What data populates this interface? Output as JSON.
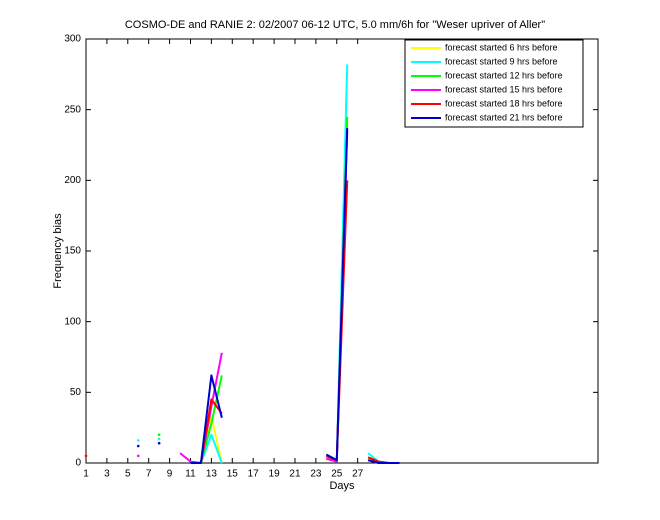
{
  "chart_data": {
    "type": "line",
    "title": "COSMO-DE and RANIE 2: 02/2007 06-12 UTC, 5.0 mm/6h for \"Weser upriver of Aller\"",
    "x_label": "Days",
    "y_label": "Frequency bias",
    "x": [
      1,
      2,
      3,
      4,
      5,
      6,
      7,
      8,
      9,
      10,
      11,
      12,
      13,
      14,
      15,
      16,
      17,
      18,
      19,
      20,
      21,
      22,
      23,
      24,
      25,
      26,
      27,
      28,
      29,
      30,
      31
    ],
    "series": [
      {
        "name": "forecast started 6 hrs before",
        "color": "#ffff00",
        "values": [
          null,
          null,
          null,
          null,
          null,
          null,
          null,
          null,
          null,
          null,
          0,
          0,
          33,
          0,
          null,
          null,
          null,
          null,
          null,
          null,
          null,
          null,
          null,
          4,
          1,
          240,
          null,
          3,
          0,
          0,
          0
        ]
      },
      {
        "name": "forecast started 9 hrs before",
        "color": "#00ffff",
        "values": [
          null,
          null,
          null,
          null,
          null,
          16,
          null,
          17,
          null,
          null,
          1,
          0,
          20,
          0,
          null,
          null,
          null,
          null,
          null,
          null,
          null,
          null,
          null,
          3,
          1,
          282,
          null,
          7,
          1,
          0,
          0
        ]
      },
      {
        "name": "forecast started 12 hrs before",
        "color": "#00ff00",
        "values": [
          null,
          null,
          null,
          null,
          null,
          null,
          null,
          20,
          null,
          null,
          0,
          0,
          28,
          62,
          null,
          null,
          null,
          null,
          null,
          null,
          null,
          null,
          null,
          5,
          1,
          245,
          null,
          4,
          0,
          0,
          0
        ]
      },
      {
        "name": "forecast started 15 hrs before",
        "color": "#ff00ff",
        "values": [
          null,
          null,
          null,
          null,
          null,
          5,
          null,
          null,
          null,
          7,
          1,
          0,
          40,
          78,
          null,
          null,
          null,
          null,
          null,
          null,
          null,
          null,
          null,
          3,
          1,
          235,
          null,
          2,
          0,
          0,
          0
        ]
      },
      {
        "name": "forecast started 18 hrs before",
        "color": "#ff0000",
        "values": [
          5,
          null,
          null,
          null,
          null,
          null,
          null,
          null,
          null,
          null,
          0,
          0,
          45,
          35,
          null,
          null,
          null,
          null,
          null,
          null,
          null,
          null,
          null,
          5,
          2,
          200,
          null,
          4,
          1,
          0,
          0
        ]
      },
      {
        "name": "forecast started 21 hrs before",
        "color": "#0000cc",
        "values": [
          null,
          null,
          null,
          null,
          null,
          12,
          null,
          14,
          null,
          null,
          0,
          0,
          62,
          32,
          null,
          null,
          null,
          null,
          null,
          null,
          null,
          null,
          null,
          6,
          2,
          237,
          null,
          2,
          0,
          0,
          0
        ]
      }
    ],
    "xlim": [
      1,
      50
    ],
    "xticks": [
      1,
      3,
      5,
      7,
      9,
      11,
      13,
      15,
      17,
      19,
      21,
      23,
      25,
      27
    ],
    "ylim": [
      0,
      300
    ],
    "yticks": [
      0,
      50,
      100,
      150,
      200,
      250,
      300
    ],
    "legend": "top-right"
  }
}
